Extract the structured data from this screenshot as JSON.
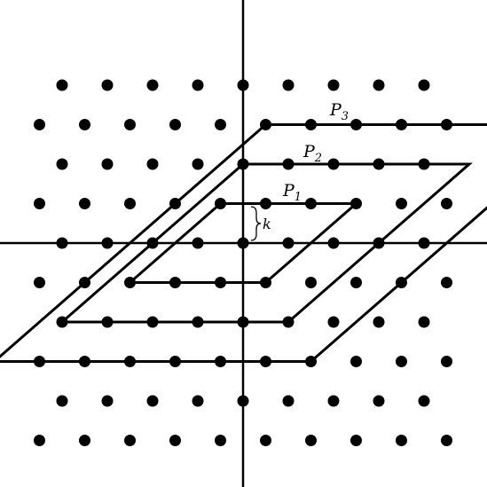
{
  "figure": {
    "description_type": "lattice-parallelograms",
    "lattice_rows": [
      4,
      3,
      2,
      1,
      0,
      -1,
      -2,
      -3,
      -4,
      -5
    ],
    "lattice_range": {
      "row_from": 4,
      "row_to": -5
    },
    "parallelograms": [
      {
        "name": "P1",
        "label": "P",
        "subscript": "1",
        "corners": [
          [
            -1,
            1
          ],
          [
            2,
            1
          ],
          [
            1,
            -1
          ],
          [
            -2,
            -1
          ]
        ]
      },
      {
        "name": "P2",
        "label": "P",
        "subscript": "2",
        "corners": [
          [
            -1,
            2
          ],
          [
            4,
            2
          ],
          [
            2,
            -2
          ],
          [
            -3,
            -2
          ]
        ]
      },
      {
        "name": "P3",
        "label": "P",
        "subscript": "3",
        "corners": [
          [
            -1,
            3
          ],
          [
            6,
            3
          ],
          [
            3,
            -3
          ],
          [
            -4,
            -3
          ]
        ]
      }
    ],
    "gap_label": "k",
    "colors": {
      "ink": "#000000",
      "background": "#ffffff"
    }
  }
}
